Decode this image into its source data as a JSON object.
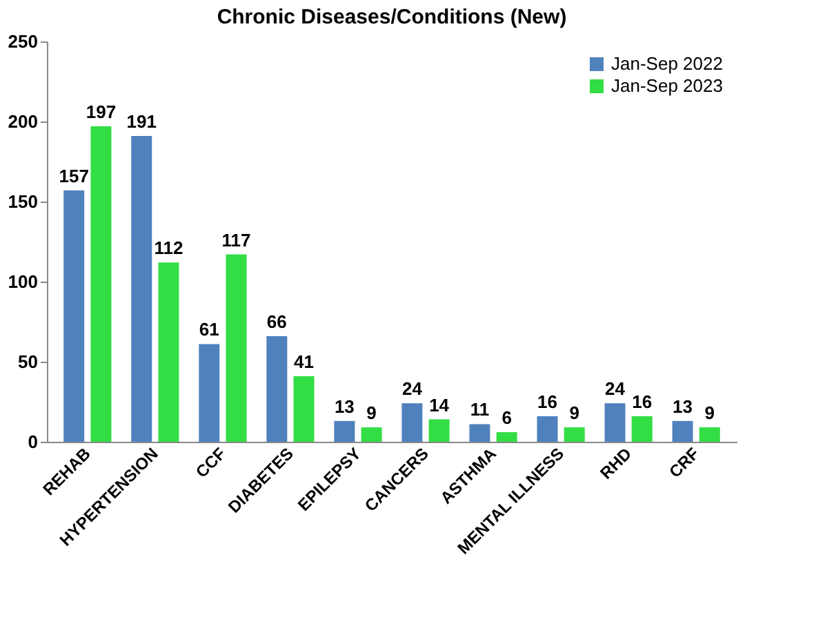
{
  "chart_data": {
    "type": "bar",
    "title": "Chronic Diseases/Conditions (New)",
    "categories": [
      "REHAB",
      "HYPERTENSION",
      "CCF",
      "DIABETES",
      "EPILEPSY",
      "CANCERS",
      "ASTHMA",
      "MENTAL ILLNESS",
      "RHD",
      "CRF"
    ],
    "series": [
      {
        "name": "Jan-Sep 2022",
        "color": "#4f81bd",
        "values": [
          157,
          191,
          61,
          66,
          13,
          24,
          11,
          16,
          24,
          13
        ]
      },
      {
        "name": "Jan-Sep 2023",
        "color": "#33dd44",
        "values": [
          197,
          112,
          117,
          41,
          9,
          14,
          6,
          9,
          16,
          9
        ]
      }
    ],
    "ylim": [
      0,
      250
    ],
    "yticks": [
      0,
      50,
      100,
      150,
      200,
      250
    ],
    "grid": false,
    "legend": "top right",
    "data_labels": true
  }
}
